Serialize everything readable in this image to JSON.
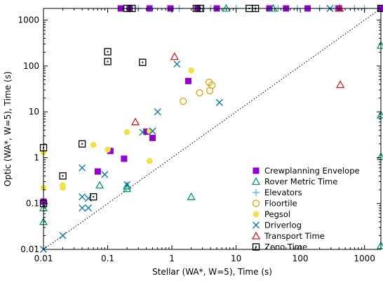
{
  "chart_data": {
    "type": "scatter",
    "title": "",
    "xlabel": "Stellar (WA*, W=5), Time (s)",
    "ylabel": "Optic (WA*, W=5), Time (s)",
    "xscale": "log",
    "yscale": "log",
    "xlim": [
      0.01,
      1800
    ],
    "ylim": [
      0.01,
      1800
    ],
    "xticks": [
      {
        "value": 0.01,
        "label": "0.01"
      },
      {
        "value": 0.1,
        "label": "0.1"
      },
      {
        "value": 1,
        "label": "1"
      },
      {
        "value": 10,
        "label": "10"
      },
      {
        "value": 100,
        "label": "100"
      },
      {
        "value": 1000,
        "label": "1000"
      }
    ],
    "yticks": [
      {
        "value": 0.01,
        "label": "0.01"
      },
      {
        "value": 0.1,
        "label": "0.1"
      },
      {
        "value": 1,
        "label": "1"
      },
      {
        "value": 10,
        "label": "10"
      },
      {
        "value": 100,
        "label": "100"
      },
      {
        "value": 1000,
        "label": "1000"
      }
    ],
    "diagonal": "y = x (dotted)",
    "legend_position": "bottom-right",
    "series": [
      {
        "name": "Crewplanning Envelope",
        "marker": "filled-square",
        "color": "#9400d3",
        "points": [
          [
            0.01,
            0.11
          ],
          [
            0.07,
            0.5
          ],
          [
            0.11,
            1.4
          ],
          [
            0.18,
            0.95
          ],
          [
            0.4,
            3.7
          ],
          [
            0.5,
            2.7
          ],
          [
            1.8,
            47
          ],
          [
            0.16,
            1800
          ],
          [
            0.22,
            1800
          ],
          [
            0.45,
            1800
          ],
          [
            0.95,
            1800
          ],
          [
            2.5,
            1800
          ],
          [
            5,
            1800
          ],
          [
            33,
            1800
          ],
          [
            60,
            1800
          ],
          [
            130,
            1800
          ],
          [
            400,
            1800
          ],
          [
            1800,
            1800
          ]
        ]
      },
      {
        "name": "Rover Metric Time",
        "marker": "open-triangle",
        "color": "#009e73",
        "points": [
          [
            0.01,
            0.04
          ],
          [
            0.01,
            0.08
          ],
          [
            0.075,
            0.25
          ],
          [
            0.2,
            0.21
          ],
          [
            0.2,
            0.24
          ],
          [
            2.0,
            0.14
          ],
          [
            7,
            1800
          ],
          [
            38,
            1800
          ],
          [
            1800,
            280
          ],
          [
            1800,
            8.5
          ],
          [
            1800,
            1.05
          ],
          [
            1800,
            0.012
          ]
        ]
      },
      {
        "name": "Elevators",
        "marker": "plus",
        "color": "#56b4e9",
        "points": [
          [
            0.3,
            1800
          ],
          [
            0.5,
            1800
          ],
          [
            1.3,
            1800
          ],
          [
            3,
            1800
          ],
          [
            4,
            1800
          ],
          [
            10,
            1800
          ],
          [
            20,
            1800
          ],
          [
            45,
            1800
          ],
          [
            90,
            1800
          ],
          [
            200,
            1800
          ],
          [
            350,
            1800
          ],
          [
            700,
            1800
          ],
          [
            1000,
            1800
          ]
        ]
      },
      {
        "name": "Floortile",
        "marker": "open-circle",
        "color": "#e69f00",
        "points": [
          [
            1.5,
            17
          ],
          [
            2.7,
            26
          ],
          [
            3.8,
            44
          ],
          [
            4.2,
            38
          ],
          [
            3.9,
            29
          ]
        ]
      },
      {
        "name": "Pegsol",
        "marker": "filled-circle",
        "color": "#f0e442",
        "points": [
          [
            0.01,
            0.22
          ],
          [
            0.01,
            1.3
          ],
          [
            0.02,
            0.22
          ],
          [
            0.02,
            0.25
          ],
          [
            0.06,
            1.9
          ],
          [
            0.1,
            1.5
          ],
          [
            0.2,
            3.6
          ],
          [
            0.45,
            0.85
          ],
          [
            0.45,
            3.8
          ],
          [
            2.0,
            80
          ]
        ]
      },
      {
        "name": "Driverlog",
        "marker": "cross",
        "color": "#0072b2",
        "points": [
          [
            0.01,
            0.01
          ],
          [
            0.02,
            0.02
          ],
          [
            0.04,
            0.08
          ],
          [
            0.04,
            0.14
          ],
          [
            0.04,
            0.6
          ],
          [
            0.05,
            0.08
          ],
          [
            0.05,
            0.13
          ],
          [
            0.09,
            0.43
          ],
          [
            0.2,
            0.26
          ],
          [
            0.35,
            3.6
          ],
          [
            0.5,
            3.8
          ],
          [
            0.6,
            10
          ],
          [
            1.2,
            110
          ],
          [
            5.5,
            16
          ],
          [
            290,
            1800
          ]
        ]
      },
      {
        "name": "Transport Time",
        "marker": "open-triangle",
        "color": "#e41a1c",
        "points": [
          [
            0.27,
            6
          ],
          [
            1.1,
            160
          ],
          [
            420,
            39
          ],
          [
            410,
            1800
          ]
        ]
      },
      {
        "name": "Zeno Time",
        "marker": "open-square-dot",
        "color": "#000000",
        "points": [
          [
            0.01,
            0.1
          ],
          [
            0.01,
            1.65
          ],
          [
            0.02,
            0.4
          ],
          [
            0.04,
            2.0
          ],
          [
            0.06,
            0.14
          ],
          [
            0.1,
            125
          ],
          [
            0.1,
            205
          ],
          [
            0.35,
            120
          ],
          [
            0.2,
            1800
          ],
          [
            0.24,
            1800
          ],
          [
            2.4,
            1800
          ],
          [
            2.8,
            1800
          ],
          [
            16,
            1800
          ],
          [
            20,
            1800
          ],
          [
            1800,
            1800
          ]
        ]
      }
    ]
  }
}
